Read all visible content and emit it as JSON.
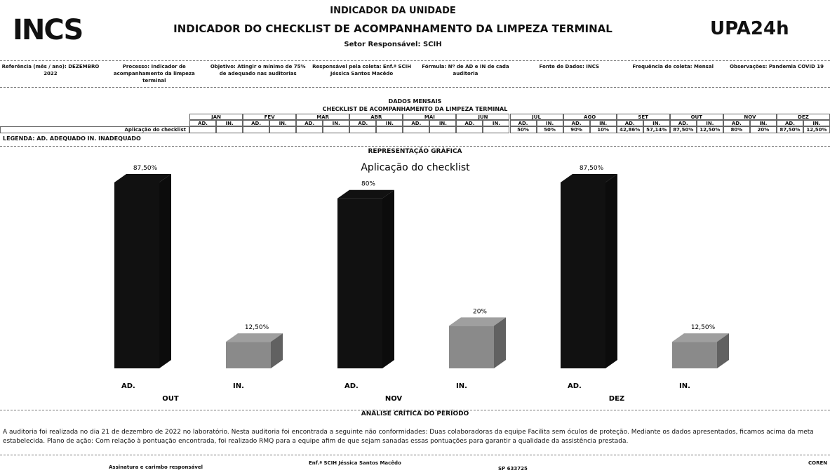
{
  "header": {
    "logo_left": "INCS",
    "logo_right": "UPA24h",
    "title": "INDICADOR DA UNIDADE",
    "subtitle": "INDICADOR DO CHECKLIST  DE ACOMPANHAMENTO DA LIMPEZA TERMINAL",
    "sector": "Setor Responsável: SCIH"
  },
  "info": [
    "Referência (mês / ano): DEZEMBRO 2022",
    "Processo: Indicador de acompanhamento da limpeza terminal",
    "Objetivo: Atingir o mínimo de 75% de adequado nas auditorias",
    "Responsável pela coleta: Enf.ª SCIH Jéssica Santos Macêdo",
    "Fórmula: Nº de AD e IN de cada auditoria",
    "Fonte de Dados: INCS",
    "Frequência de coleta: Mensal",
    "Observações: Pandemia COVID 19"
  ],
  "table": {
    "section": "DADOS MENSAIS",
    "title": "CHECKLIST DE ACOMPANHAMENTO DA LIMPEZA TERMINAL",
    "months": [
      "JAN",
      "FEV",
      "MAR",
      "ABR",
      "MAI",
      "JUN",
      "JUL",
      "AGO",
      "SET",
      "OUT",
      "NOV",
      "DEZ"
    ],
    "subheaders": [
      "AD.",
      "IN."
    ],
    "row_label": "Aplicação do checklist",
    "cells": [
      null,
      null,
      null,
      null,
      null,
      null,
      null,
      null,
      null,
      null,
      null,
      null,
      "50%",
      "50%",
      "90%",
      "10%",
      "42,86%",
      "57,14%",
      "87,50%",
      "12,50%",
      "80%",
      "20%",
      "87,50%",
      "12,50%"
    ]
  },
  "legend": "LEGENDA: AD. ADEQUADO IN. INADEQUADO",
  "graphic_section": "REPRESENTAÇÃO GRÁFICA",
  "chart_data": {
    "type": "bar3d",
    "title": "Aplicação do checklist",
    "categories": [
      "OUT",
      "NOV",
      "DEZ"
    ],
    "series": [
      {
        "name": "AD.",
        "color": "#111111",
        "values": [
          87.5,
          80,
          87.5
        ],
        "value_labels": [
          "87,50%",
          "80%",
          "87,50%"
        ]
      },
      {
        "name": "IN.",
        "color": "#8a8a8a",
        "values": [
          12.5,
          20,
          12.5
        ],
        "value_labels": [
          "12,50%",
          "20%",
          "12,50%"
        ]
      }
    ]
  },
  "analysis": {
    "title": "ANÁLISE CRÍTICA DO PERÍODO",
    "text": "A auditoria foi realizada no dia 21 de dezembro de 2022 no laboratório. Nesta auditoria foi encontrada a seguinte não conformidades: Duas colaboradoras da equipe Facilita sem óculos de proteção. Mediante os dados apresentados, ficamos acima da meta estabelecida. Plano de ação: Com relação à pontuação encontrada, foi realizado RMQ para a equipe afim de que sejam sanadas essas pontuações para garantir a qualidade da assistência prestada."
  },
  "signature": {
    "label": "Assinatura e carimbo responsável",
    "name": "Enf.ª SCIH Jéssica Santos Macêdo",
    "register": "SP 633725",
    "coren": "COREN"
  }
}
